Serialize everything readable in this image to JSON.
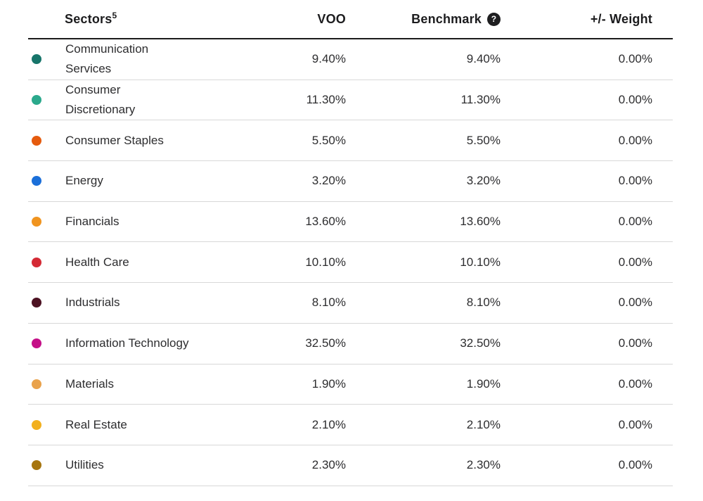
{
  "table": {
    "headers": {
      "sectors_label": "Sectors",
      "sectors_superscript": "5",
      "voo_label": "VOO",
      "benchmark_label": "Benchmark",
      "weight_label": "+/- Weight"
    },
    "help_icon_glyph": "?",
    "colors": {
      "header_rule": "#1c1c1c",
      "row_divider": "#d8d8d8",
      "header_text": "#1c1c1e",
      "body_text": "#2d2d2f"
    },
    "rows": [
      {
        "sector": "Communication Services",
        "dot_color": "#17756A",
        "voo": "9.40%",
        "benchmark": "9.40%",
        "weight": "0.00%"
      },
      {
        "sector": "Consumer Discretionary",
        "dot_color": "#2BA98C",
        "voo": "11.30%",
        "benchmark": "11.30%",
        "weight": "0.00%"
      },
      {
        "sector": "Consumer Staples",
        "dot_color": "#E55B0E",
        "voo": "5.50%",
        "benchmark": "5.50%",
        "weight": "0.00%"
      },
      {
        "sector": "Energy",
        "dot_color": "#1B6FD9",
        "voo": "3.20%",
        "benchmark": "3.20%",
        "weight": "0.00%"
      },
      {
        "sector": "Financials",
        "dot_color": "#F0941F",
        "voo": "13.60%",
        "benchmark": "13.60%",
        "weight": "0.00%"
      },
      {
        "sector": "Health Care",
        "dot_color": "#D42A35",
        "voo": "10.10%",
        "benchmark": "10.10%",
        "weight": "0.00%"
      },
      {
        "sector": "Industrials",
        "dot_color": "#4C1222",
        "voo": "8.10%",
        "benchmark": "8.10%",
        "weight": "0.00%"
      },
      {
        "sector": "Information Technology",
        "dot_color": "#C40F87",
        "voo": "32.50%",
        "benchmark": "32.50%",
        "weight": "0.00%"
      },
      {
        "sector": "Materials",
        "dot_color": "#E9A24B",
        "voo": "1.90%",
        "benchmark": "1.90%",
        "weight": "0.00%"
      },
      {
        "sector": "Real Estate",
        "dot_color": "#F2B01E",
        "voo": "2.10%",
        "benchmark": "2.10%",
        "weight": "0.00%"
      },
      {
        "sector": "Utilities",
        "dot_color": "#A6750F",
        "voo": "2.30%",
        "benchmark": "2.30%",
        "weight": "0.00%"
      }
    ]
  }
}
